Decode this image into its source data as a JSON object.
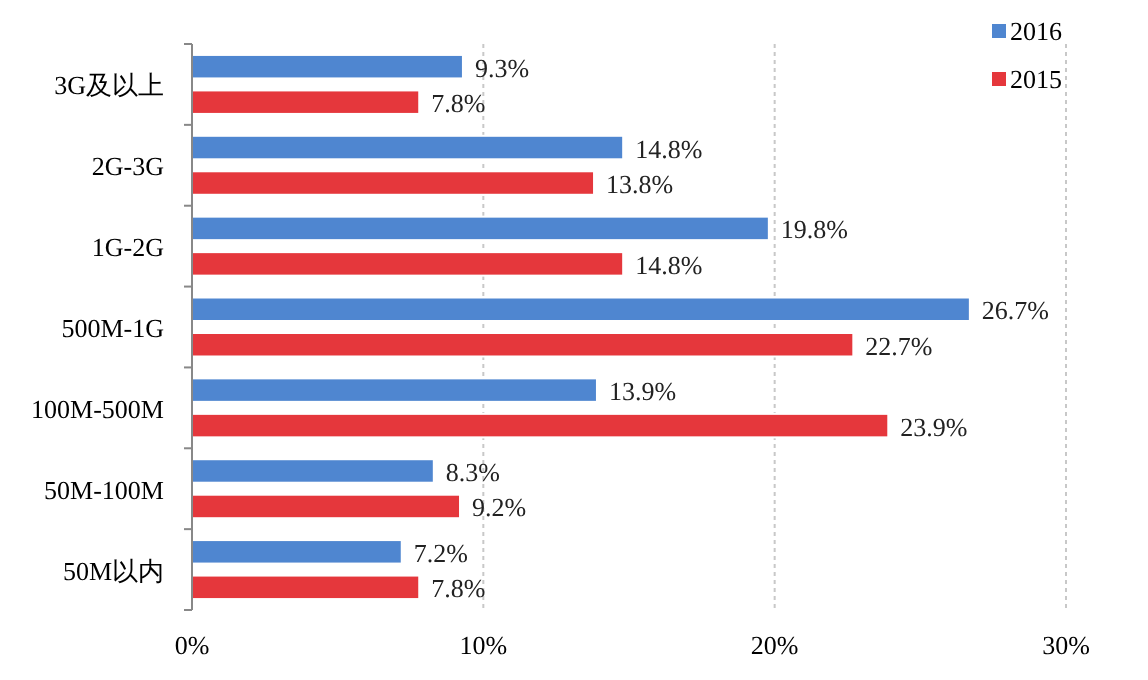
{
  "chart_data": {
    "type": "bar",
    "orientation": "horizontal",
    "categories": [
      "3G及以上",
      "2G-3G",
      "1G-2G",
      "500M-1G",
      "100M-500M",
      "50M-100M",
      "50M以内"
    ],
    "series": [
      {
        "name": "2016",
        "color": "#4f86d0",
        "values": [
          9.3,
          14.8,
          19.8,
          26.7,
          13.9,
          8.3,
          7.2
        ],
        "value_labels": [
          "9.3%",
          "14.8%",
          "19.8%",
          "26.7%",
          "13.9%",
          "8.3%",
          "7.2%"
        ]
      },
      {
        "name": "2015",
        "color": "#e5373c",
        "values": [
          7.8,
          13.8,
          14.8,
          22.7,
          23.9,
          9.2,
          7.8
        ],
        "value_labels": [
          "7.8%",
          "13.8%",
          "14.8%",
          "22.7%",
          "23.9%",
          "9.2%",
          "7.8%"
        ]
      }
    ],
    "xlim": [
      0,
      30
    ],
    "xticks": [
      {
        "value": 0,
        "label": "0%"
      },
      {
        "value": 10,
        "label": "10%"
      },
      {
        "value": 20,
        "label": "20%"
      },
      {
        "value": 30,
        "label": "30%"
      }
    ],
    "grid": "x",
    "legend": "top right"
  }
}
